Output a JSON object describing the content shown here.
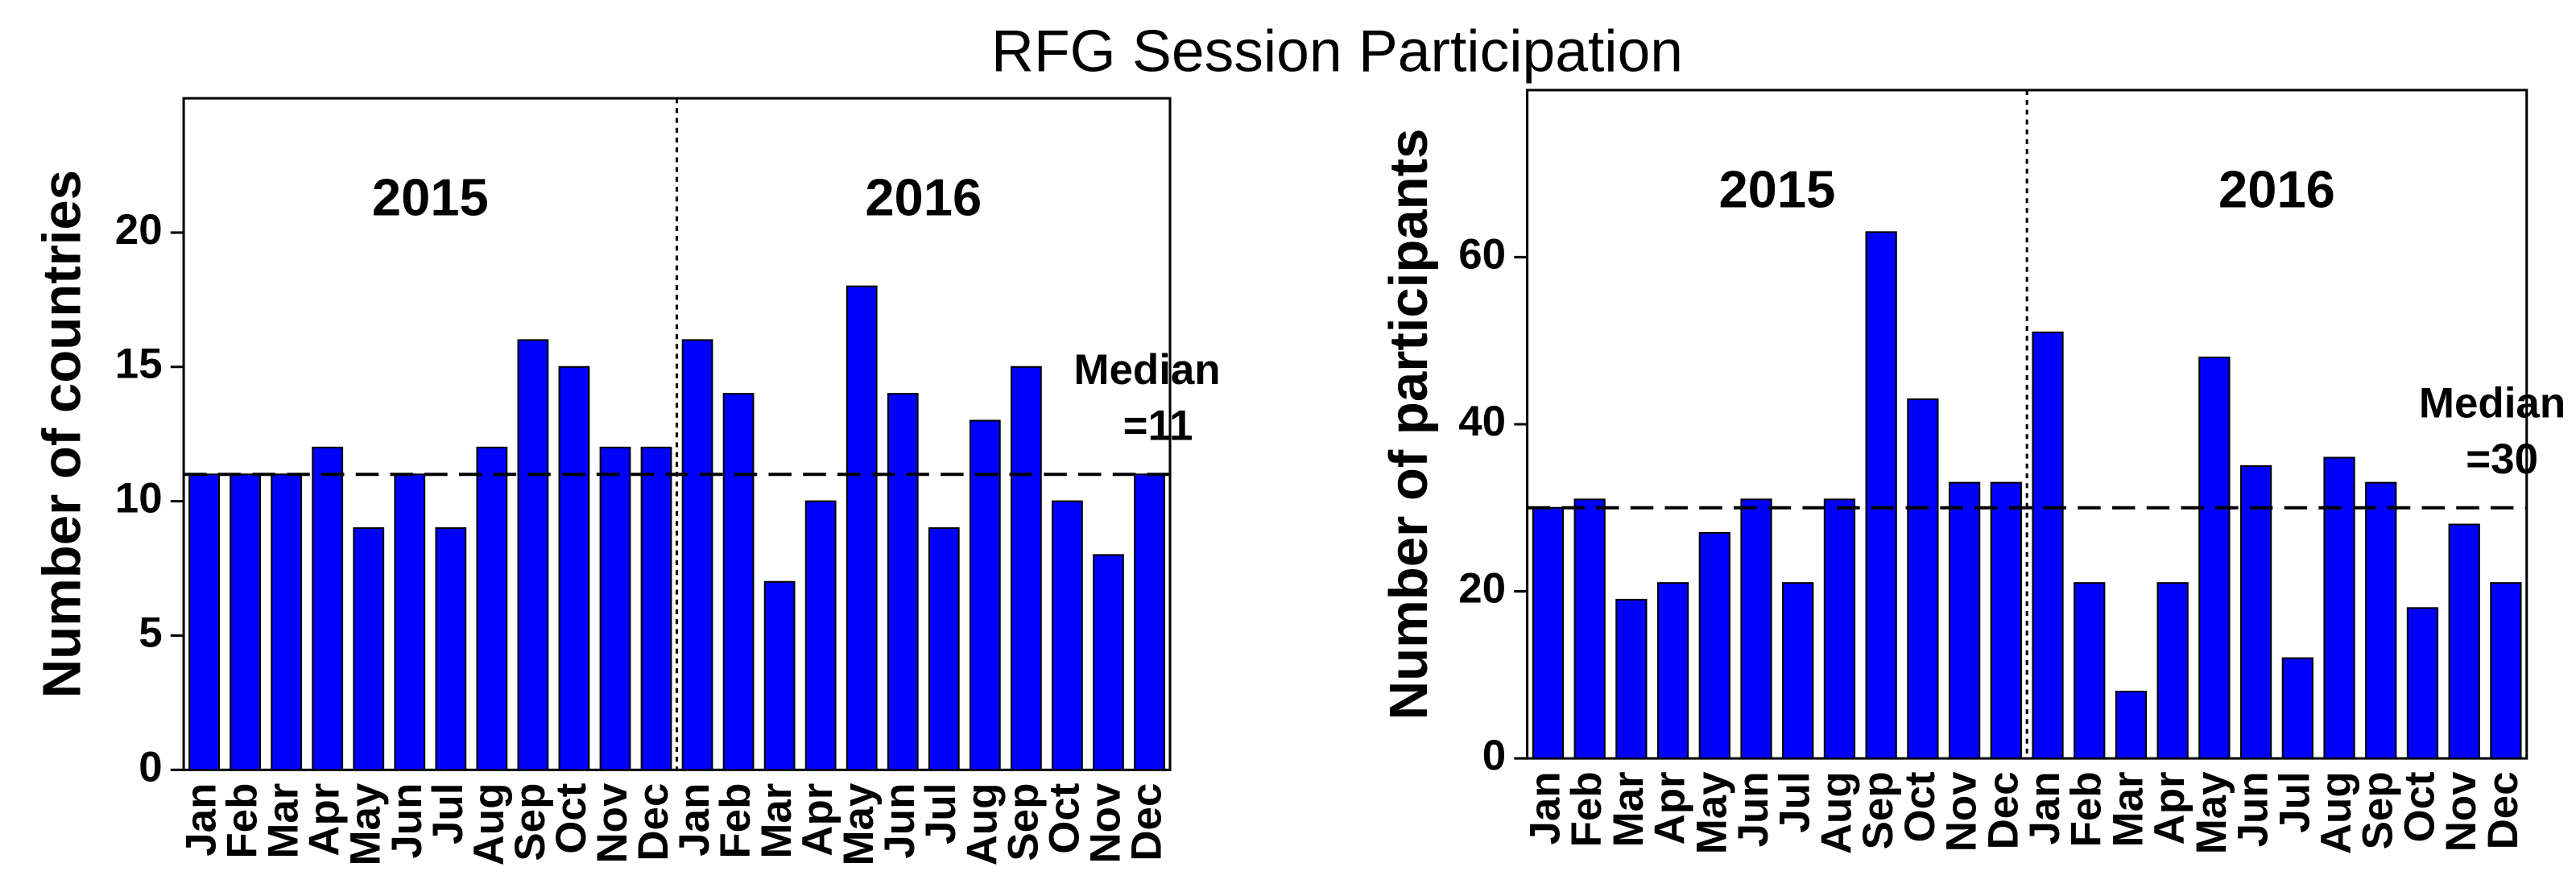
{
  "title": "RFG Session Participation",
  "chart_data": [
    {
      "type": "bar",
      "ylabel": "Number of countries",
      "color": "#0000ff",
      "categories": [
        "Jan",
        "Feb",
        "Mar",
        "Apr",
        "May",
        "Jun",
        "Jul",
        "Aug",
        "Sep",
        "Oct",
        "Nov",
        "Dec",
        "Jan",
        "Feb",
        "Mar",
        "Apr",
        "May",
        "Jun",
        "Jul",
        "Aug",
        "Sep",
        "Oct",
        "Nov",
        "Dec"
      ],
      "values": [
        11,
        11,
        11,
        12,
        9,
        11,
        9,
        12,
        16,
        15,
        12,
        12,
        16,
        14,
        7,
        10,
        18,
        14,
        9,
        13,
        15,
        10,
        8,
        11
      ],
      "ylim": [
        0,
        25
      ],
      "yticks": [
        0,
        5,
        10,
        15,
        20
      ],
      "groups": [
        "2015",
        "2016"
      ],
      "median": {
        "value": 11,
        "label": [
          "Median",
          "=11"
        ]
      }
    },
    {
      "type": "bar",
      "ylabel": "Number of participants",
      "color": "#0000ff",
      "categories": [
        "Jan",
        "Feb",
        "Mar",
        "Apr",
        "May",
        "Jun",
        "Jul",
        "Aug",
        "Sep",
        "Oct",
        "Nov",
        "Dec",
        "Jan",
        "Feb",
        "Mar",
        "Apr",
        "May",
        "Jun",
        "Jul",
        "Aug",
        "Sep",
        "Oct",
        "Nov",
        "Dec"
      ],
      "values": [
        30,
        31,
        19,
        21,
        27,
        31,
        21,
        31,
        63,
        43,
        33,
        33,
        51,
        21,
        8,
        21,
        48,
        35,
        12,
        36,
        33,
        18,
        28,
        21
      ],
      "ylim": [
        0,
        80
      ],
      "yticks": [
        0,
        20,
        40,
        60
      ],
      "groups": [
        "2015",
        "2016"
      ],
      "median": {
        "value": 30,
        "label": [
          "Median",
          "=30"
        ]
      }
    }
  ]
}
